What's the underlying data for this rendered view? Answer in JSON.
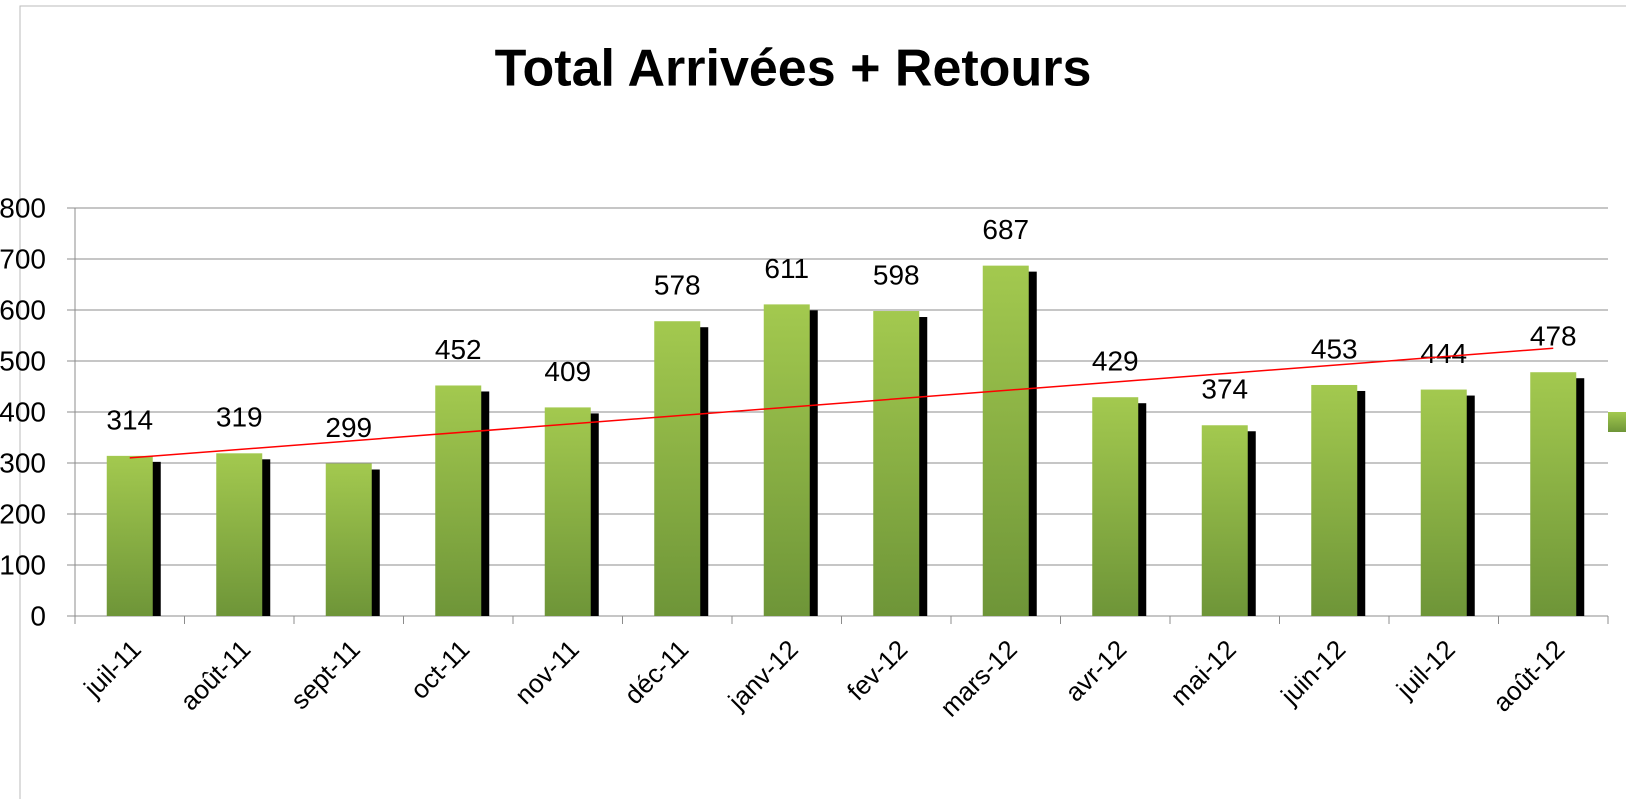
{
  "chart_data": {
    "type": "bar",
    "title": "Total Arrivées + Retours",
    "categories": [
      "juil-11",
      "août-11",
      "sept-11",
      "oct-11",
      "nov-11",
      "déc-11",
      "janv-12",
      "fev-12",
      "mars-12",
      "avr-12",
      "mai-12",
      "juin-12",
      "juil-12",
      "août-12"
    ],
    "values": [
      314,
      319,
      299,
      452,
      409,
      578,
      611,
      598,
      687,
      429,
      374,
      453,
      444,
      478
    ],
    "color": "#8fb848",
    "ylim": [
      0,
      800
    ],
    "yticks": [
      0,
      100,
      200,
      300,
      400,
      500,
      600,
      700,
      800
    ],
    "grid": true,
    "trendline": {
      "color": "#ff0000",
      "start": 310,
      "end": 525
    }
  }
}
